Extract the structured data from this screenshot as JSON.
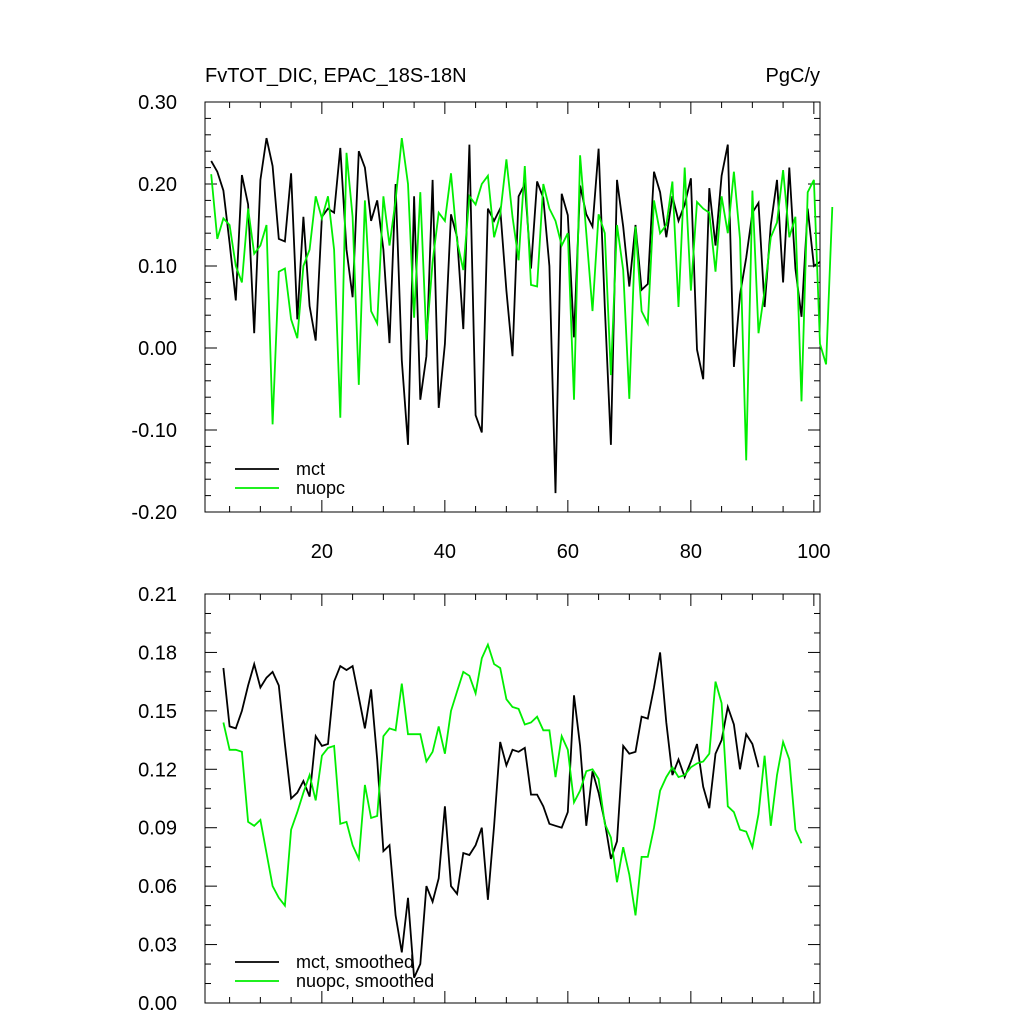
{
  "chart_data": [
    {
      "type": "line",
      "title": "FvTOT_DIC, EPAC_18S-18N",
      "units": "PgC/y",
      "xlim": [
        1,
        101
      ],
      "ylim": [
        -0.2,
        0.3
      ],
      "x_ticks": [
        20,
        40,
        60,
        80,
        100
      ],
      "x_tick_labels": [
        "20",
        "40",
        "60",
        "80",
        "100"
      ],
      "y_ticks": [
        -0.2,
        -0.1,
        0.0,
        0.1,
        0.2,
        0.3
      ],
      "y_tick_labels": [
        "-0.20",
        "-0.10",
        "0.00",
        "0.10",
        "0.20",
        "0.30"
      ],
      "legend": {
        "position": "bottom-left",
        "entries": [
          "mct",
          "nuopc"
        ]
      },
      "series": [
        {
          "name": "mct",
          "color": "#000000",
          "x_start": 2,
          "values": [
            0.228,
            0.215,
            0.192,
            0.128,
            0.058,
            0.211,
            0.175,
            0.018,
            0.205,
            0.256,
            0.222,
            0.133,
            0.13,
            0.213,
            0.035,
            0.16,
            0.051,
            0.009,
            0.16,
            0.17,
            0.165,
            0.244,
            0.12,
            0.062,
            0.24,
            0.22,
            0.155,
            0.18,
            0.12,
            0.006,
            0.2,
            -0.015,
            -0.118,
            0.185,
            -0.063,
            -0.01,
            0.205,
            -0.073,
            0.005,
            0.163,
            0.135,
            0.023,
            0.248,
            -0.082,
            -0.103,
            0.17,
            0.155,
            0.17,
            0.07,
            -0.01,
            0.185,
            0.2,
            0.097,
            0.203,
            0.183,
            0.1,
            -0.177,
            0.188,
            0.162,
            0.013,
            0.198,
            0.163,
            0.148,
            0.243,
            0.05,
            -0.118,
            0.205,
            0.148,
            0.075,
            0.15,
            0.071,
            0.078,
            0.215,
            0.19,
            0.135,
            0.185,
            0.155,
            0.175,
            0.207,
            -0.002,
            -0.038,
            0.195,
            0.125,
            0.21,
            0.248,
            -0.023,
            0.065,
            0.11,
            0.165,
            0.177,
            0.05,
            0.15,
            0.205,
            0.08,
            0.22,
            0.097,
            0.038,
            0.17,
            0.1,
            0.105
          ]
        },
        {
          "name": "nuopc",
          "color": "#00ee00",
          "x_start": 2,
          "values": [
            0.212,
            0.133,
            0.158,
            0.15,
            0.1,
            0.08,
            0.17,
            0.115,
            0.125,
            0.15,
            -0.093,
            0.093,
            0.097,
            0.035,
            0.012,
            0.1,
            0.12,
            0.185,
            0.158,
            0.185,
            0.12,
            -0.085,
            0.238,
            0.16,
            -0.045,
            0.18,
            0.045,
            0.03,
            0.185,
            0.125,
            0.18,
            0.256,
            0.2,
            0.037,
            0.19,
            0.01,
            0.105,
            0.165,
            0.155,
            0.213,
            0.13,
            0.095,
            0.185,
            0.175,
            0.2,
            0.21,
            0.135,
            0.163,
            0.23,
            0.16,
            0.107,
            0.222,
            0.077,
            0.075,
            0.2,
            0.17,
            0.155,
            0.125,
            0.14,
            -0.063,
            0.235,
            0.14,
            0.045,
            0.163,
            0.14,
            -0.033,
            0.15,
            0.095,
            -0.062,
            0.148,
            0.045,
            0.03,
            0.18,
            0.14,
            0.15,
            0.203,
            0.05,
            0.22,
            0.07,
            0.178,
            0.17,
            0.165,
            0.093,
            0.185,
            0.14,
            0.215,
            0.133,
            -0.137,
            0.192,
            0.018,
            0.07,
            0.135,
            0.153,
            0.217,
            0.135,
            0.16,
            -0.065,
            0.19,
            0.205,
            0.005,
            -0.02,
            0.172
          ]
        }
      ]
    },
    {
      "type": "line",
      "title": "",
      "xlim": [
        1,
        101
      ],
      "ylim": [
        0.0,
        0.21
      ],
      "x_ticks": [
        20,
        40,
        60,
        80,
        100
      ],
      "x_tick_labels": [],
      "y_ticks": [
        0.0,
        0.03,
        0.06,
        0.09,
        0.12,
        0.15,
        0.18,
        0.21
      ],
      "y_tick_labels": [
        "0.00",
        "0.03",
        "0.06",
        "0.09",
        "0.12",
        "0.15",
        "0.18",
        "0.21"
      ],
      "legend": {
        "position": "bottom-left",
        "entries": [
          "mct, smoothed",
          "nuopc, smoothed"
        ]
      },
      "series": [
        {
          "name": "mct, smoothed",
          "color": "#000000",
          "x_start": 4,
          "values": [
            0.172,
            0.142,
            0.141,
            0.15,
            0.163,
            0.174,
            0.162,
            0.167,
            0.17,
            0.163,
            0.133,
            0.105,
            0.108,
            0.114,
            0.106,
            0.137,
            0.132,
            0.133,
            0.165,
            0.173,
            0.171,
            0.173,
            0.157,
            0.141,
            0.161,
            0.125,
            0.078,
            0.081,
            0.045,
            0.026,
            0.054,
            0.013,
            0.02,
            0.06,
            0.052,
            0.064,
            0.101,
            0.06,
            0.056,
            0.077,
            0.076,
            0.081,
            0.09,
            0.053,
            0.091,
            0.134,
            0.122,
            0.13,
            0.129,
            0.131,
            0.107,
            0.107,
            0.101,
            0.092,
            0.091,
            0.09,
            0.098,
            0.158,
            0.132,
            0.091,
            0.119,
            0.108,
            0.093,
            0.074,
            0.083,
            0.132,
            0.128,
            0.129,
            0.147,
            0.146,
            0.162,
            0.18,
            0.144,
            0.117,
            0.125,
            0.116,
            0.124,
            0.133,
            0.111,
            0.1,
            0.128,
            0.135,
            0.152,
            0.143,
            0.12,
            0.138,
            0.133,
            0.121
          ]
        },
        {
          "name": "nuopc, smoothed",
          "color": "#00ee00",
          "x_start": 4,
          "values": [
            0.144,
            0.13,
            0.13,
            0.129,
            0.093,
            0.091,
            0.094,
            0.077,
            0.06,
            0.054,
            0.05,
            0.089,
            0.098,
            0.108,
            0.117,
            0.104,
            0.127,
            0.131,
            0.132,
            0.092,
            0.093,
            0.081,
            0.074,
            0.112,
            0.095,
            0.096,
            0.137,
            0.141,
            0.14,
            0.164,
            0.138,
            0.138,
            0.138,
            0.124,
            0.129,
            0.142,
            0.128,
            0.15,
            0.16,
            0.17,
            0.168,
            0.159,
            0.177,
            0.184,
            0.174,
            0.172,
            0.156,
            0.152,
            0.151,
            0.143,
            0.144,
            0.147,
            0.14,
            0.14,
            0.116,
            0.137,
            0.13,
            0.103,
            0.109,
            0.119,
            0.12,
            0.115,
            0.092,
            0.085,
            0.062,
            0.08,
            0.066,
            0.045,
            0.075,
            0.075,
            0.09,
            0.109,
            0.116,
            0.121,
            0.116,
            0.117,
            0.121,
            0.123,
            0.124,
            0.128,
            0.165,
            0.154,
            0.101,
            0.098,
            0.089,
            0.088,
            0.08,
            0.097,
            0.127,
            0.091,
            0.117,
            0.134,
            0.125,
            0.089,
            0.082
          ]
        }
      ]
    }
  ]
}
